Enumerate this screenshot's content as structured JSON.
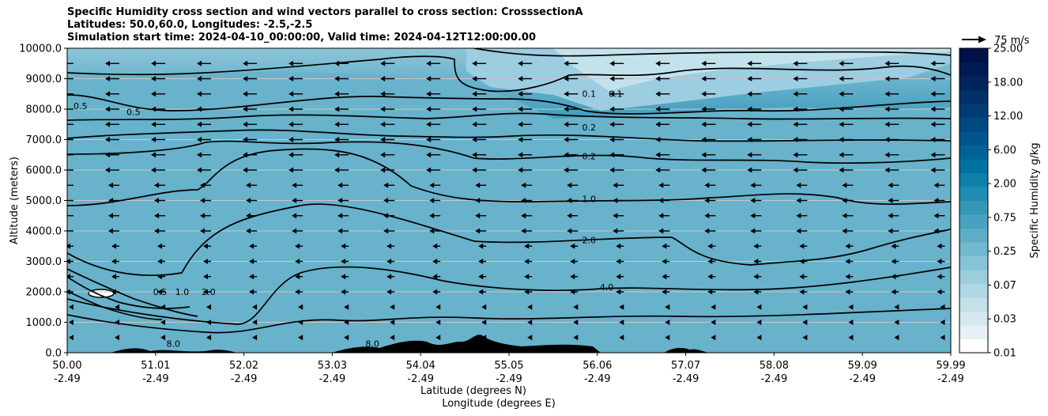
{
  "title_lines": [
    "Specific Humidity cross section and wind vectors parallel to cross section: CrosssectionA",
    "Latitudes: 50.0,60.0, Longitudes: -2.5,-2.5",
    "Simulation start time: 2024-04-10_00:00:00, Valid time: 2024-04-12T12:00:00.00"
  ],
  "chart_data": {
    "type": "heatmap",
    "title": "Specific Humidity cross section and wind vectors parallel to cross section: CrosssectionA",
    "ylabel": "Altitude (meters)",
    "xlabel_lines": [
      "Latitude (degrees N)",
      "Longitude (degrees E)"
    ],
    "ylim": [
      0,
      10000
    ],
    "yticks": [
      "0.0",
      "1000.0",
      "2000.0",
      "3000.0",
      "4000.0",
      "5000.0",
      "6000.0",
      "7000.0",
      "8000.0",
      "9000.0",
      "10000.0"
    ],
    "xticks_lat": [
      "50.00",
      "51.01",
      "52.02",
      "53.03",
      "54.04",
      "55.05",
      "56.06",
      "57.07",
      "58.08",
      "59.09",
      "59.99"
    ],
    "xticks_lon": [
      "-2.49",
      "-2.49",
      "-2.49",
      "-2.49",
      "-2.49",
      "-2.49",
      "-2.49",
      "-2.49",
      "-2.49",
      "-2.49",
      "-2.49"
    ],
    "grid": "horizontal",
    "colorbar": {
      "label": "Specific Humidity g/kg",
      "ticks": [
        "0.01",
        "0.03",
        "0.07",
        "0.25",
        "0.75",
        "2.00",
        "6.00",
        "12.00",
        "18.00",
        "25.00"
      ],
      "colors": [
        "#ffffff",
        "#e6f1f5",
        "#d3e8ef",
        "#c1e0ea",
        "#afd7e4",
        "#9bcddd",
        "#87c3d6",
        "#72b8ce",
        "#5dadc7",
        "#48a2bf",
        "#3397b8",
        "#1f8cb1",
        "#0d80aa",
        "#0072a0",
        "#006496",
        "#00568c",
        "#004a80",
        "#003d74",
        "#003168",
        "#00245c",
        "#001a52",
        "#001048"
      ]
    },
    "wind_reference": "75 m/s",
    "wind_direction": "negative-x",
    "contour_labels": [
      {
        "text": "0.1",
        "x_lat": 55.9,
        "y_m": 8400
      },
      {
        "text": "0.1",
        "x_lat": 56.2,
        "y_m": 8400
      },
      {
        "text": "0.2",
        "x_lat": 55.9,
        "y_m": 7300
      },
      {
        "text": "0.2",
        "x_lat": 55.9,
        "y_m": 6350
      },
      {
        "text": "1.0",
        "x_lat": 55.9,
        "y_m": 4950
      },
      {
        "text": "2.0",
        "x_lat": 55.9,
        "y_m": 3600
      },
      {
        "text": "4.0",
        "x_lat": 56.1,
        "y_m": 2050
      },
      {
        "text": "0.5",
        "x_lat": 50.15,
        "y_m": 8000
      },
      {
        "text": "0.5",
        "x_lat": 50.75,
        "y_m": 7800
      },
      {
        "text": "2.0",
        "x_lat": 51.6,
        "y_m": 1900
      },
      {
        "text": "1.0",
        "x_lat": 51.3,
        "y_m": 1900
      },
      {
        "text": "0.5",
        "x_lat": 51.05,
        "y_m": 1900
      },
      {
        "text": "8.0",
        "x_lat": 53.45,
        "y_m": 200
      },
      {
        "text": "8.0",
        "x_lat": 51.2,
        "y_m": 200
      }
    ]
  }
}
